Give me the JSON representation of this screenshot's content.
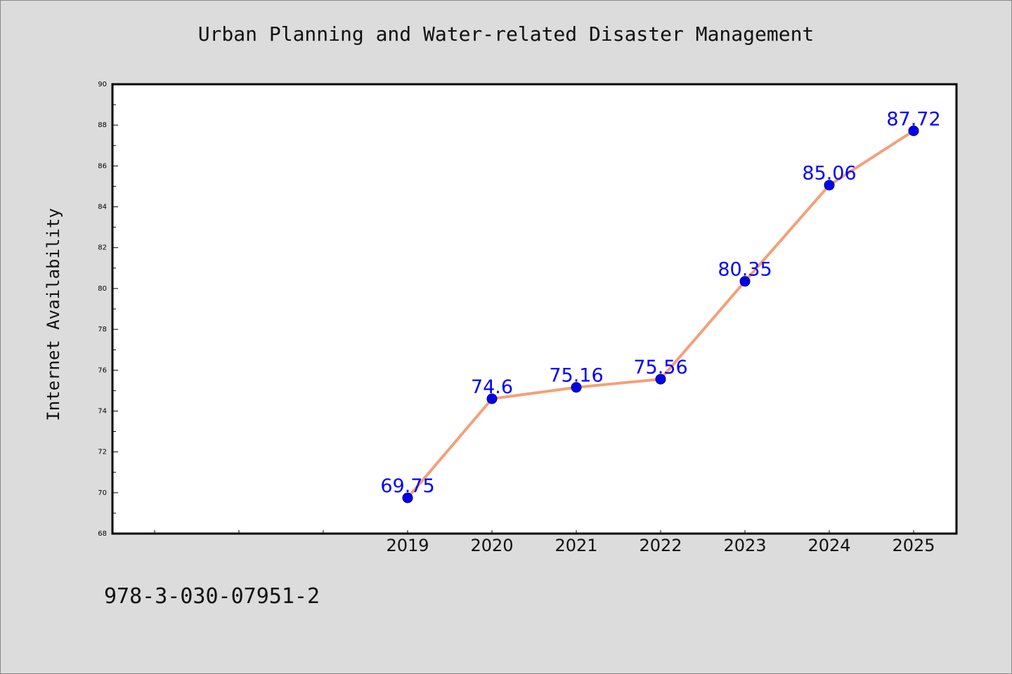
{
  "chart_data": {
    "type": "line",
    "title": "Urban Planning and Water-related Disaster Management",
    "xlabel": "",
    "ylabel": "Internet Availability",
    "x_ticks": [
      "",
      "",
      "",
      "2019",
      "2020",
      "2021",
      "2022",
      "2023",
      "2024",
      "2025"
    ],
    "x": [
      "2019",
      "2020",
      "2021",
      "2022",
      "2023",
      "2024",
      "2025"
    ],
    "series": [
      {
        "values": [
          69.75,
          74.6,
          75.16,
          75.56,
          80.35,
          85.06,
          87.72
        ]
      }
    ],
    "data_labels": [
      "69.75",
      "74.6",
      "75.16",
      "75.56",
      "80.35",
      "85.06",
      "87.72"
    ],
    "ylim": [
      68,
      90
    ],
    "y_ticks": [
      68,
      70,
      72,
      74,
      76,
      78,
      80,
      82,
      84,
      86,
      88,
      90
    ],
    "grid": false,
    "colors": {
      "line": "#f4a07a",
      "marker": "#0000ee",
      "label": "#0000ff",
      "background": "#dcdcdc",
      "plot_background": "#ffffff"
    }
  },
  "footer": {
    "isbn": "978-3-030-07951-2"
  }
}
